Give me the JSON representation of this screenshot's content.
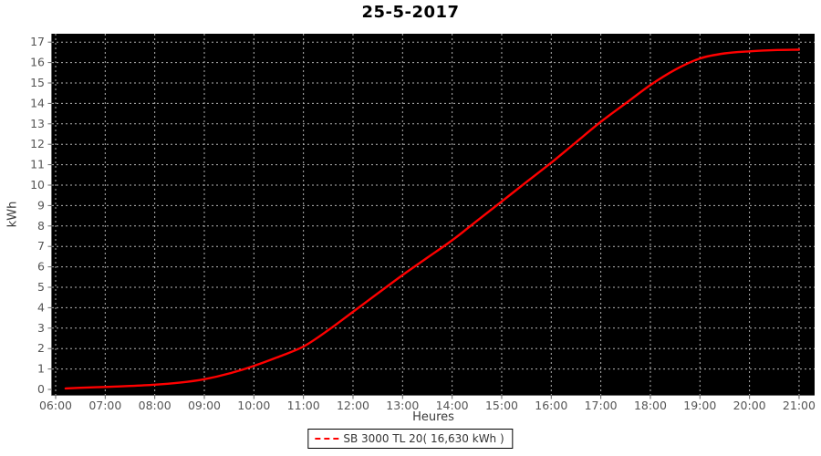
{
  "title": "25-5-2017",
  "legend": {
    "label": "SB 3000 TL 20( 16,630 kWh )"
  },
  "chart_data": {
    "type": "line",
    "title": "25-5-2017",
    "xlabel": "Heures",
    "ylabel": "kWh",
    "x_tick_labels": [
      "06:00",
      "07:00",
      "08:00",
      "09:00",
      "10:00",
      "11:00",
      "12:00",
      "13:00",
      "14:00",
      "15:00",
      "16:00",
      "17:00",
      "18:00",
      "19:00",
      "20:00",
      "21:00"
    ],
    "y_ticks": [
      0,
      1,
      2,
      3,
      4,
      5,
      6,
      7,
      8,
      9,
      10,
      11,
      12,
      13,
      14,
      15,
      16,
      17
    ],
    "ylim": [
      0,
      17
    ],
    "xlim_hours": [
      6,
      21
    ],
    "grid": true,
    "legend_position": "bottom",
    "plot_background": "#000000",
    "grid_color": "#c8c8c8",
    "axis_color": "#666666",
    "tick_label_color": "#555555",
    "series": [
      {
        "name": "SB 3000 TL 20( 16,630 kWh )",
        "color": "#ff0000",
        "x_hours": [
          6.2,
          6.5,
          7.0,
          7.5,
          8.0,
          8.5,
          9.0,
          9.5,
          10.0,
          10.5,
          11.0,
          11.5,
          12.0,
          12.5,
          13.0,
          13.5,
          14.0,
          14.5,
          15.0,
          15.5,
          16.0,
          16.5,
          17.0,
          17.5,
          18.0,
          18.5,
          19.0,
          19.5,
          20.0,
          20.5,
          21.0
        ],
        "y_kwh": [
          0.05,
          0.08,
          0.12,
          0.17,
          0.23,
          0.33,
          0.5,
          0.78,
          1.15,
          1.6,
          2.1,
          2.9,
          3.8,
          4.7,
          5.6,
          6.45,
          7.3,
          8.25,
          9.2,
          10.15,
          11.1,
          12.1,
          13.1,
          14.0,
          14.9,
          15.65,
          16.2,
          16.45,
          16.55,
          16.61,
          16.63
        ]
      }
    ]
  }
}
